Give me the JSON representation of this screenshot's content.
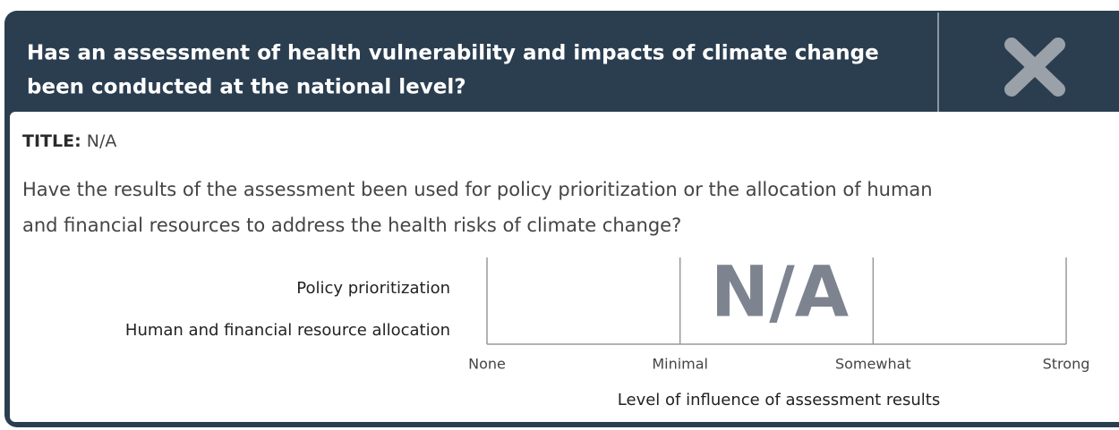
{
  "header": {
    "title_lines": [
      "Has an assessment of health vulnerability and impacts of climate change",
      "been conducted at the national level?"
    ]
  },
  "title_label": "TITLE:",
  "title_value": "N/A",
  "question_lines": [
    "Have the results of the assessment been used for policy prioritization or the allocation of human",
    "and financial resources to address the health risks of climate change?"
  ],
  "scale": {
    "rows": [
      "Policy prioritization",
      "Human and financial resource allocation"
    ],
    "levels": [
      "None",
      "Minimal",
      "Somewhat",
      "Strong"
    ],
    "axis_label": "Level of influence of assessment results",
    "overlay": "N/A"
  }
}
